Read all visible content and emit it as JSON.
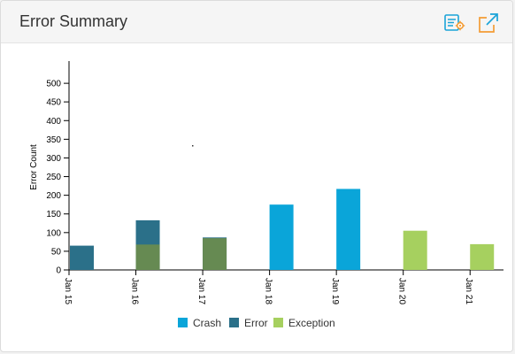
{
  "header": {
    "title": "Error Summary",
    "settings_icon": "chart-settings-icon",
    "expand_icon": "popout-expand-icon"
  },
  "colors": {
    "Crash": "#0aa5d9",
    "Error": "#2b7089",
    "Exception": "#a6d05f",
    "overlap": "#668a52",
    "header_icon": "#1aa3d8",
    "header_icon_accent": "#f39c35"
  },
  "chart_data": {
    "type": "bar",
    "ylabel": "Error Count",
    "xlabel": "",
    "ylim": [
      0,
      550
    ],
    "yticks": [
      0,
      50,
      100,
      150,
      200,
      250,
      300,
      350,
      400,
      450,
      500
    ],
    "categories": [
      "Jan 15",
      "Jan 16",
      "Jan 17",
      "Jan 18",
      "Jan 19",
      "Jan 20",
      "Jan 21"
    ],
    "series": [
      {
        "name": "Crash",
        "values": [
          0,
          0,
          0,
          175,
          217,
          0,
          0
        ]
      },
      {
        "name": "Error",
        "values": [
          65,
          133,
          87,
          0,
          0,
          0,
          0
        ]
      },
      {
        "name": "Exception",
        "values": [
          0,
          68,
          85,
          0,
          0,
          105,
          69
        ]
      }
    ],
    "legend": [
      "Crash",
      "Error",
      "Exception"
    ],
    "legend_position": "bottom",
    "grid": false
  }
}
